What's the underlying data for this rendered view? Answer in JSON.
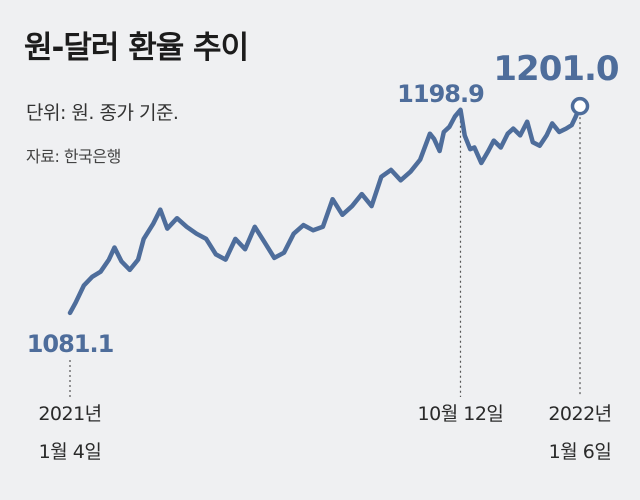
{
  "header": {
    "title": "원-달러 환율 추이",
    "unit": "단위: 원. 종가 기준.",
    "source": "자료: 한국은행"
  },
  "chart_data": {
    "type": "line",
    "title": "원-달러 환율 추이",
    "ylabel": "",
    "line_color": "#4e6d9b",
    "ylim": [
      1070,
      1215
    ],
    "series": [
      {
        "name": "",
        "values": [
          [
            "2021-01-04",
            1081.1
          ],
          [
            "2021-01-08",
            1087.0
          ],
          [
            "2021-01-14",
            1097.0
          ],
          [
            "2021-01-20",
            1102.0
          ],
          [
            "2021-01-26",
            1105.0
          ],
          [
            "2021-02-01",
            1112.0
          ],
          [
            "2021-02-05",
            1119.0
          ],
          [
            "2021-02-10",
            1111.0
          ],
          [
            "2021-02-16",
            1106.0
          ],
          [
            "2021-02-22",
            1112.0
          ],
          [
            "2021-02-26",
            1124.0
          ],
          [
            "2021-03-05",
            1133.0
          ],
          [
            "2021-03-10",
            1141.0
          ],
          [
            "2021-03-15",
            1130.0
          ],
          [
            "2021-03-22",
            1136.0
          ],
          [
            "2021-03-29",
            1131.0
          ],
          [
            "2021-04-05",
            1127.0
          ],
          [
            "2021-04-12",
            1124.0
          ],
          [
            "2021-04-19",
            1115.0
          ],
          [
            "2021-04-26",
            1112.0
          ],
          [
            "2021-05-03",
            1124.0
          ],
          [
            "2021-05-10",
            1118.0
          ],
          [
            "2021-05-17",
            1131.0
          ],
          [
            "2021-05-24",
            1122.0
          ],
          [
            "2021-05-31",
            1113.0
          ],
          [
            "2021-06-07",
            1116.0
          ],
          [
            "2021-06-14",
            1127.0
          ],
          [
            "2021-06-21",
            1132.0
          ],
          [
            "2021-06-28",
            1129.0
          ],
          [
            "2021-07-05",
            1131.0
          ],
          [
            "2021-07-12",
            1147.0
          ],
          [
            "2021-07-19",
            1138.0
          ],
          [
            "2021-07-26",
            1143.0
          ],
          [
            "2021-08-02",
            1150.0
          ],
          [
            "2021-08-09",
            1143.0
          ],
          [
            "2021-08-16",
            1160.0
          ],
          [
            "2021-08-23",
            1164.0
          ],
          [
            "2021-08-30",
            1158.0
          ],
          [
            "2021-09-06",
            1163.0
          ],
          [
            "2021-09-13",
            1170.0
          ],
          [
            "2021-09-20",
            1185.0
          ],
          [
            "2021-09-23",
            1182.0
          ],
          [
            "2021-09-27",
            1175.0
          ],
          [
            "2021-09-30",
            1186.0
          ],
          [
            "2021-10-04",
            1189.0
          ],
          [
            "2021-10-08",
            1195.0
          ],
          [
            "2021-10-12",
            1198.9
          ],
          [
            "2021-10-15",
            1184.0
          ],
          [
            "2021-10-19",
            1176.0
          ],
          [
            "2021-10-22",
            1177.0
          ],
          [
            "2021-10-27",
            1168.0
          ],
          [
            "2021-11-01",
            1175.0
          ],
          [
            "2021-11-05",
            1181.0
          ],
          [
            "2021-11-10",
            1177.0
          ],
          [
            "2021-11-15",
            1185.0
          ],
          [
            "2021-11-19",
            1188.0
          ],
          [
            "2021-11-24",
            1184.0
          ],
          [
            "2021-11-29",
            1192.0
          ],
          [
            "2021-12-03",
            1180.0
          ],
          [
            "2021-12-08",
            1178.0
          ],
          [
            "2021-12-13",
            1184.0
          ],
          [
            "2021-12-17",
            1191.0
          ],
          [
            "2021-12-22",
            1186.0
          ],
          [
            "2021-12-27",
            1188.0
          ],
          [
            "2021-12-31",
            1190.0
          ],
          [
            "2022-01-03",
            1195.0
          ],
          [
            "2022-01-06",
            1201.0
          ]
        ]
      }
    ],
    "annotations": [
      {
        "date": "2021-01-04",
        "value": 1081.1,
        "label": "1081.1",
        "tick": [
          "2021년",
          "1월 4일"
        ]
      },
      {
        "date": "2021-10-12",
        "value": 1198.9,
        "label": "1198.9",
        "tick": [
          "10월 12일"
        ]
      },
      {
        "date": "2022-01-06",
        "value": 1201.0,
        "label": "1201.0",
        "tick": [
          "2022년",
          "1월 6일"
        ]
      }
    ]
  }
}
